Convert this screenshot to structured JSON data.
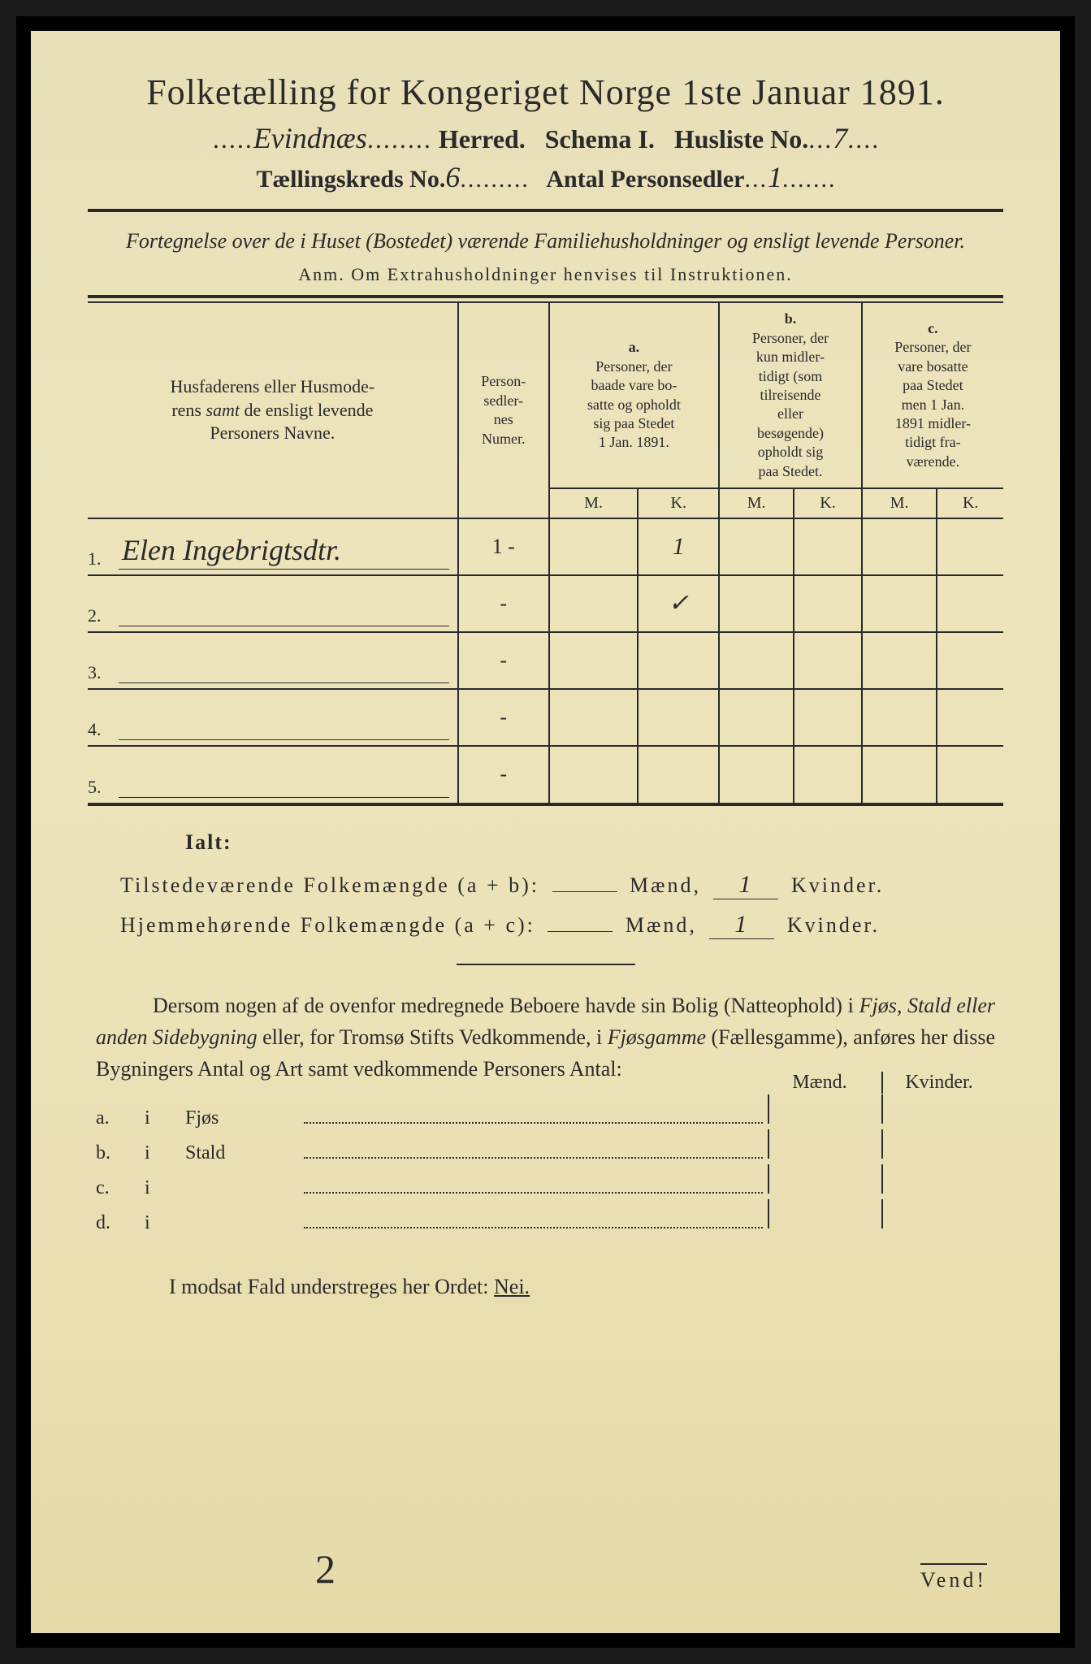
{
  "title": "Folketælling for Kongeriget Norge 1ste Januar 1891.",
  "herred_value": "Evindnæs",
  "herred_label": "Herred.",
  "schema_label": "Schema I.",
  "husliste_label": "Husliste No.",
  "husliste_value": "7",
  "kreds_label": "Tællingskreds No.",
  "kreds_value": "6",
  "personsedler_label": "Antal Personsedler",
  "personsedler_value": "1",
  "subtitle": "Fortegnelse over de i Huset (Bostedet) værende Familiehusholdninger og ensligt levende Personer.",
  "anm": "Anm. Om Extrahusholdninger henvises til Instruktionen.",
  "col_names": "Husfaderens eller Husmoderens samt de ensligt levende Personers Navne.",
  "col_personsedler": "Person-sedler-nes Numer.",
  "col_a_label": "a.",
  "col_a_text": "Personer, der baade vare bosatte og opholdt sig paa Stedet 1 Jan. 1891.",
  "col_b_label": "b.",
  "col_b_text": "Personer, der kun midlertidigt (som tilreisende eller besøgende) opholdt sig paa Stedet.",
  "col_c_label": "c.",
  "col_c_text": "Personer, der vare bosatte paa Stedet men 1 Jan. 1891 midlertidigt fraværende.",
  "mk_m": "M.",
  "mk_k": "K.",
  "rows": [
    {
      "num": "1.",
      "name": "Elen Ingebrigtsdtr.",
      "ps": "1 -",
      "a_m": "",
      "a_k": "1",
      "b_m": "",
      "b_k": "",
      "c_m": "",
      "c_k": ""
    },
    {
      "num": "2.",
      "name": "",
      "ps": "-",
      "a_m": "",
      "a_k": "✓",
      "b_m": "",
      "b_k": "",
      "c_m": "",
      "c_k": ""
    },
    {
      "num": "3.",
      "name": "",
      "ps": "-",
      "a_m": "",
      "a_k": "",
      "b_m": "",
      "b_k": "",
      "c_m": "",
      "c_k": ""
    },
    {
      "num": "4.",
      "name": "",
      "ps": "-",
      "a_m": "",
      "a_k": "",
      "b_m": "",
      "b_k": "",
      "c_m": "",
      "c_k": ""
    },
    {
      "num": "5.",
      "name": "",
      "ps": "-",
      "a_m": "",
      "a_k": "",
      "b_m": "",
      "b_k": "",
      "c_m": "",
      "c_k": ""
    }
  ],
  "ialt": "Ialt:",
  "sum1_label": "Tilstedeværende Folkemængde (a + b):",
  "sum2_label": "Hjemmehørende Folkemængde (a + c):",
  "maend": "Mænd,",
  "kvinder": "Kvinder.",
  "sum1_m": "",
  "sum1_k": "1",
  "sum2_m": "",
  "sum2_k": "1",
  "para": "Dersom nogen af de ovenfor medregnede Beboere havde sin Bolig (Natteophold) i Fjøs, Stald eller anden Sidebygning eller, for Tromsø Stifts Vedkommende, i Fjøsgamme (Fællesgamme), anføres her disse Bygningers Antal og Art samt vedkommende Personers Antal:",
  "dwelling_hdr_m": "Mænd.",
  "dwelling_hdr_k": "Kvinder.",
  "dwelling_rows": [
    {
      "l": "a.",
      "i": "i",
      "t": "Fjøs"
    },
    {
      "l": "b.",
      "i": "i",
      "t": "Stald"
    },
    {
      "l": "c.",
      "i": "i",
      "t": ""
    },
    {
      "l": "d.",
      "i": "i",
      "t": ""
    }
  ],
  "nei_text": "I modsat Fald understreges her Ordet: ",
  "nei_word": "Nei.",
  "vend": "Vend!",
  "bottom_num": "2",
  "colors": {
    "paper": "#ece2b8",
    "ink": "#2a2a2a",
    "border": "#000000"
  }
}
